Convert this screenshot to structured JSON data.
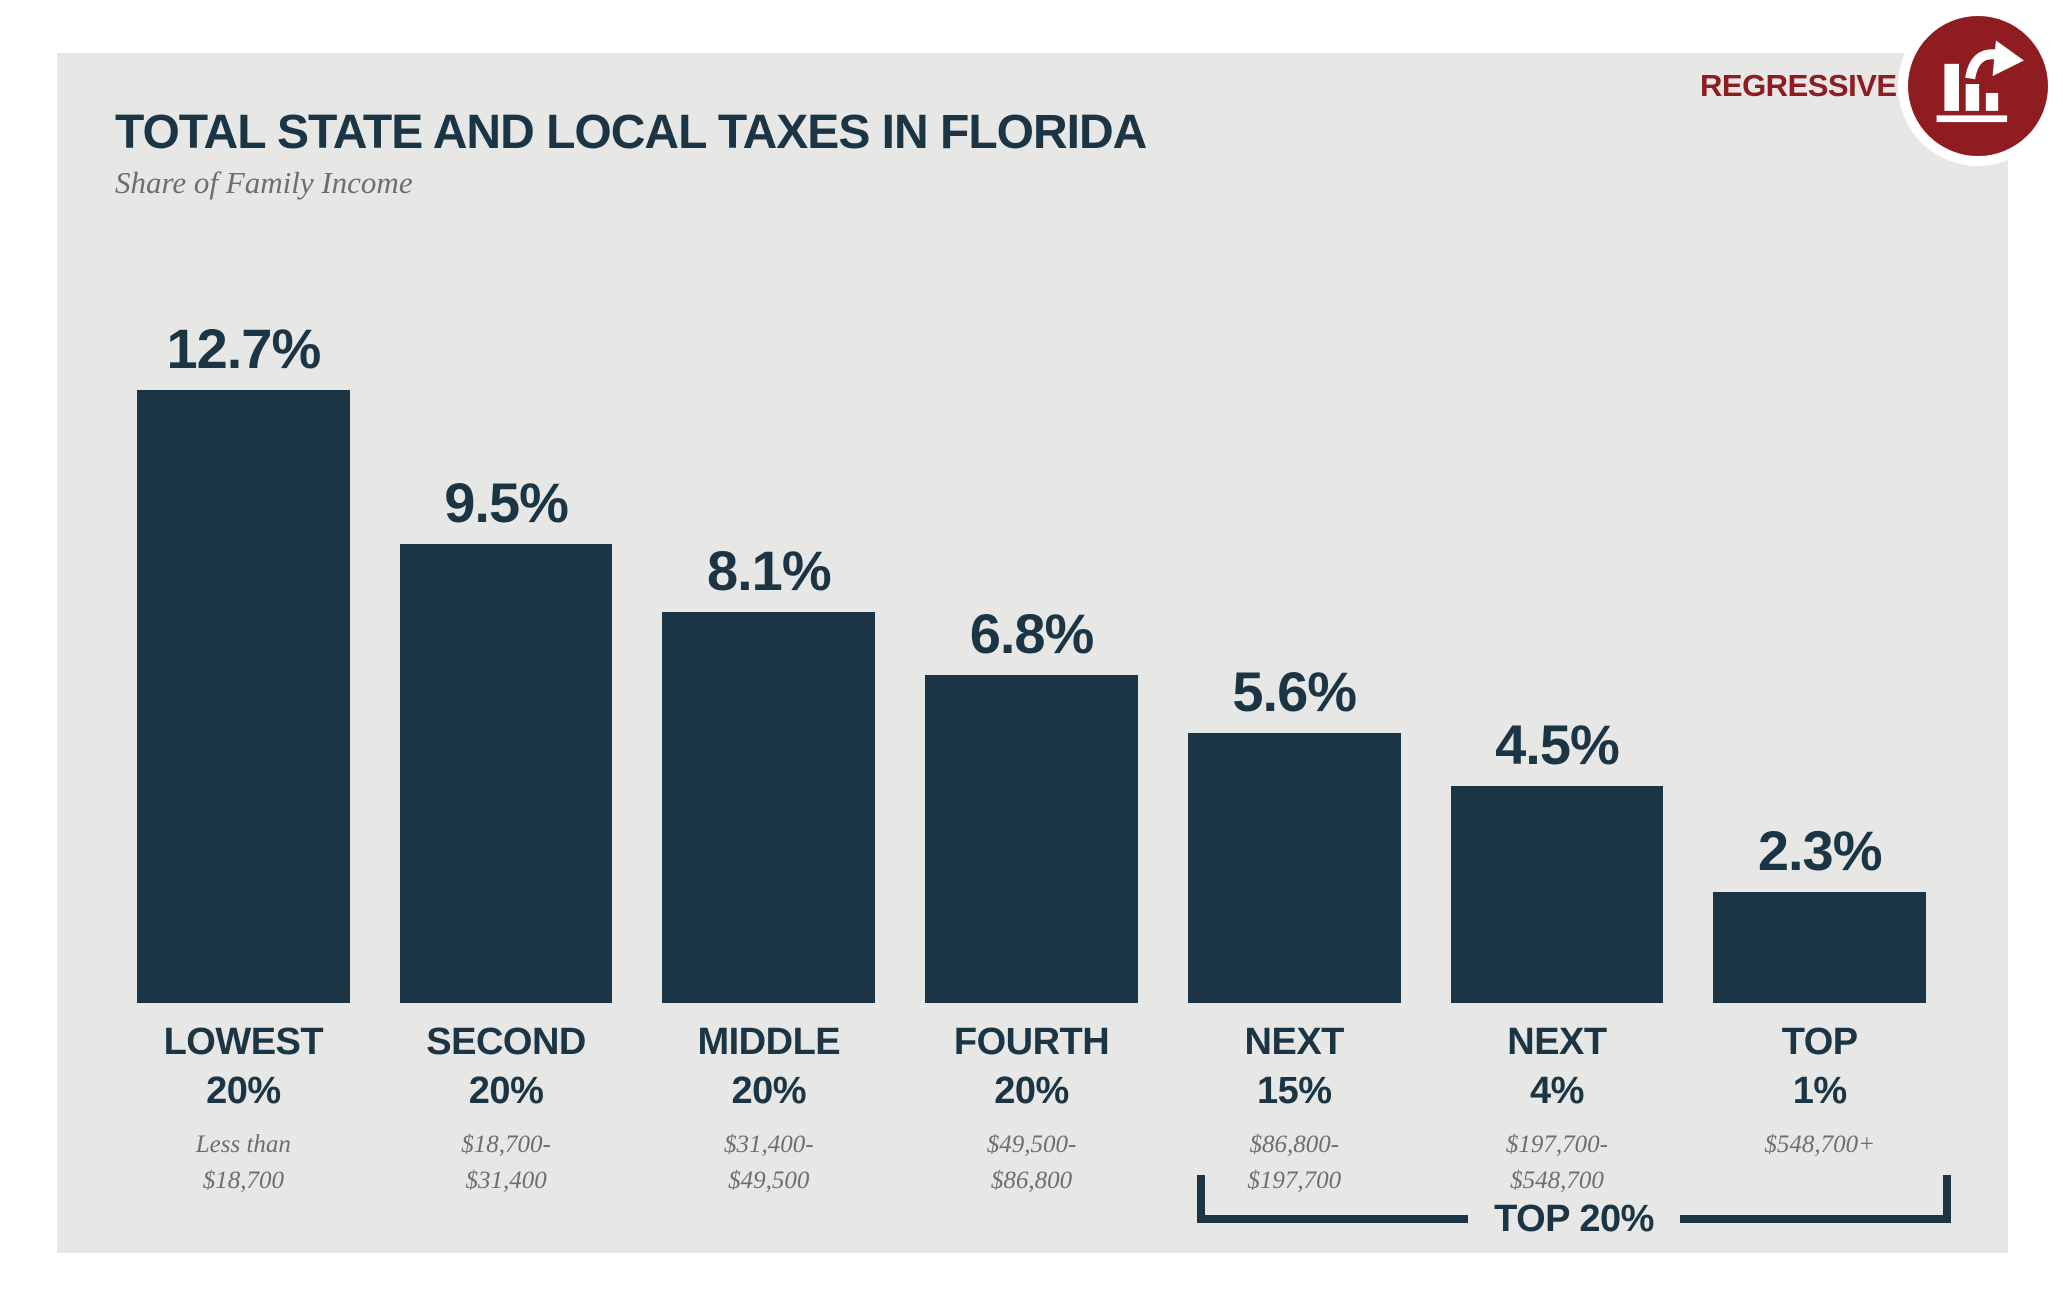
{
  "page": {
    "panel_background": "#e7e7e6",
    "bar_color": "#1b3544",
    "accent_red": "#8e1c21"
  },
  "header": {
    "title": "TOTAL STATE AND LOCAL TAXES IN FLORIDA",
    "subtitle": "Share of Family Income"
  },
  "badge": {
    "label": "REGRESSIVE",
    "icon": "declining-bars-arrow-icon",
    "color": "#8e1c21"
  },
  "chart_data": {
    "type": "bar",
    "title": "TOTAL STATE AND LOCAL TAXES IN FLORIDA",
    "subtitle": "Share of Family Income",
    "unit": "percent of family income",
    "ylim": [
      0,
      13
    ],
    "grid": false,
    "legend": "none",
    "bar_color": "#1b3544",
    "categories": [
      "LOWEST 20%",
      "SECOND 20%",
      "MIDDLE 20%",
      "FOURTH 20%",
      "NEXT 15%",
      "NEXT 4%",
      "TOP 1%"
    ],
    "values": [
      12.7,
      9.5,
      8.1,
      6.8,
      5.6,
      4.5,
      2.3
    ],
    "value_labels": [
      "12.7%",
      "9.5%",
      "8.1%",
      "6.8%",
      "5.6%",
      "4.5%",
      "2.3%"
    ],
    "income_ranges": [
      "Less than $18,700",
      "$18,700-$31,400",
      "$31,400-$49,500",
      "$49,500-$86,800",
      "$86,800-$197,700",
      "$197,700-$548,700",
      "$548,700+"
    ],
    "group_annotation": {
      "label": "TOP 20%",
      "spans": [
        "NEXT 15%",
        "NEXT 4%",
        "TOP 1%"
      ]
    }
  },
  "bars": [
    {
      "value": 12.7,
      "value_label": "12.7%",
      "group": "LOWEST",
      "share": "20%",
      "range1": "Less than",
      "range2": "$18,700"
    },
    {
      "value": 9.5,
      "value_label": "9.5%",
      "group": "SECOND",
      "share": "20%",
      "range1": "$18,700-",
      "range2": "$31,400"
    },
    {
      "value": 8.1,
      "value_label": "8.1%",
      "group": "MIDDLE",
      "share": "20%",
      "range1": "$31,400-",
      "range2": "$49,500"
    },
    {
      "value": 6.8,
      "value_label": "6.8%",
      "group": "FOURTH",
      "share": "20%",
      "range1": "$49,500-",
      "range2": "$86,800"
    },
    {
      "value": 5.6,
      "value_label": "5.6%",
      "group": "NEXT",
      "share": "15%",
      "range1": "$86,800-",
      "range2": "$197,700"
    },
    {
      "value": 4.5,
      "value_label": "4.5%",
      "group": "NEXT",
      "share": "4%",
      "range1": "$197,700-",
      "range2": "$548,700"
    },
    {
      "value": 2.3,
      "value_label": "2.3%",
      "group": "TOP",
      "share": "1%",
      "range1": "$548,700+",
      "range2": ""
    }
  ],
  "bracket": {
    "label": "TOP 20%"
  }
}
